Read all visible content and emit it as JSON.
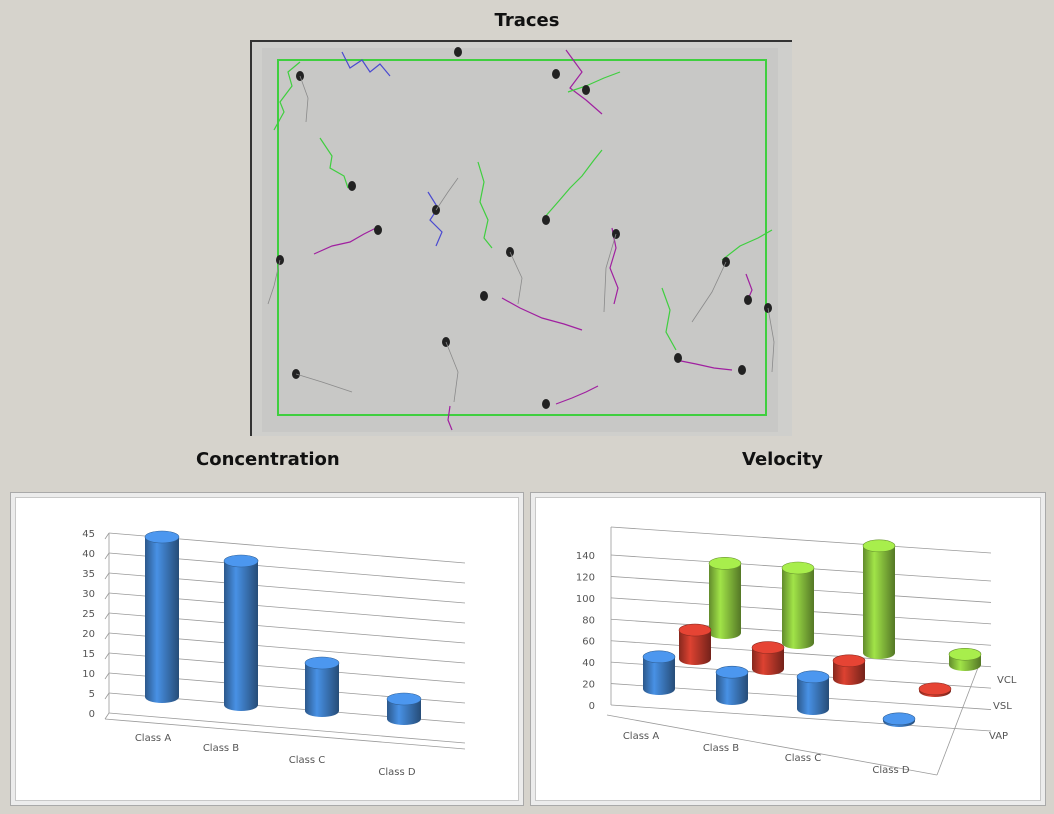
{
  "titles": {
    "traces": "Traces",
    "concentration": "Concentration",
    "velocity": "Velocity"
  },
  "colors": {
    "blue_bar": "#3f7ec7",
    "red_bar": "#c0392b",
    "green_bar": "#8cc63f",
    "trace_green": "#3fcf3f",
    "trace_purple": "#a020a0",
    "trace_blue": "#4a4ad0"
  },
  "chart_data": [
    {
      "type": "bar",
      "style": "3d-cylinder",
      "categories": [
        "Class A",
        "Class B",
        "Class C",
        "Class D"
      ],
      "values": [
        40,
        36,
        12,
        5
      ],
      "ylim": [
        0,
        45
      ],
      "yticks": [
        0,
        5,
        10,
        15,
        20,
        25,
        30,
        35,
        40,
        45
      ],
      "grid": true
    },
    {
      "type": "bar",
      "style": "3d-cylinder",
      "categories": [
        "Class A",
        "Class B",
        "Class C",
        "Class D"
      ],
      "series": [
        {
          "name": "VAP",
          "values": [
            30,
            25,
            30,
            2
          ]
        },
        {
          "name": "VSL",
          "values": [
            27,
            20,
            17,
            2
          ]
        },
        {
          "name": "VCL",
          "values": [
            65,
            70,
            100,
            10
          ]
        }
      ],
      "ylim": [
        0,
        140
      ],
      "yticks": [
        0,
        20,
        40,
        60,
        80,
        100,
        120,
        140
      ],
      "grid": true
    }
  ]
}
